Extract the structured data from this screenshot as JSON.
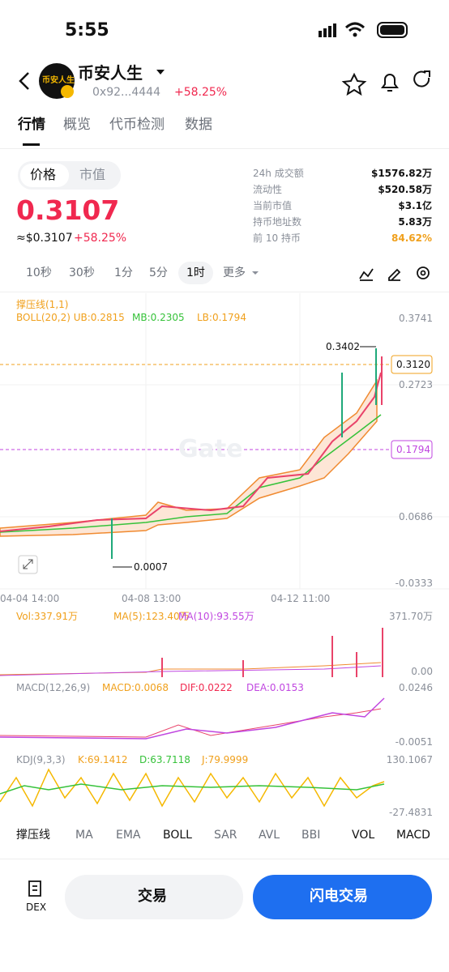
{
  "status": {
    "time": "5:55"
  },
  "header": {
    "name": "币安人生",
    "address": "0x92...4444",
    "change": "+58.25%",
    "avatar": "币安人生"
  },
  "tabs": [
    "行情",
    "概览",
    "代币检测",
    "数据"
  ],
  "toggle": [
    "价格",
    "市值"
  ],
  "price": {
    "value": "0.3107",
    "usd": "≈$0.3107",
    "usd_change": "+58.25%"
  },
  "stats": [
    [
      "24h 成交额",
      "$1576.82万"
    ],
    [
      "流动性",
      "$520.58万"
    ],
    [
      "当前市值",
      "$3.1亿"
    ],
    [
      "持币地址数",
      "5.83万"
    ],
    [
      "前 10 持币",
      "84.62%"
    ]
  ],
  "intervals": [
    "10秒",
    "30秒",
    "1分",
    "5分",
    "1时",
    "更多"
  ],
  "main_chart": {
    "indicator": "撑压线(1,1)",
    "boll": "BOLL(20,2) UB:0.2815",
    "mb": "MB:0.2305",
    "lb": "LB:0.1794",
    "axis": [
      "0.3741",
      "0.2723",
      "0.0686",
      "-0.0333"
    ],
    "last": "0.3120",
    "lb_marker": "0.1794",
    "high": "0.3402",
    "low": "0.0007",
    "x": [
      "04-04 14:00",
      "04-08 13:00",
      "04-12 11:00"
    ],
    "watermark": "Gate"
  },
  "volume": {
    "vol": "Vol:337.91万",
    "ma5": "MA(5):123.40万",
    "ma10": "MA(10):93.55万",
    "axis": [
      "371.70万",
      "0.00"
    ]
  },
  "macd": {
    "name": "MACD(12,26,9)",
    "macd": "MACD:0.0068",
    "dif": "DIF:0.0222",
    "dea": "DEA:0.0153",
    "axis": [
      "0.0246",
      "-0.0051"
    ]
  },
  "kdj": {
    "name": "KDJ(9,3,3)",
    "k": "K:69.1412",
    "d": "D:63.7118",
    "j": "J:79.9999",
    "axis": [
      "130.1067",
      "-27.4831"
    ]
  },
  "indicators": [
    "撑压线",
    "MA",
    "EMA",
    "BOLL",
    "SAR",
    "AVL",
    "BBI",
    "VOL",
    "MACD"
  ],
  "footer": {
    "dex": "DEX",
    "trade": "交易",
    "flash": "闪电交易"
  }
}
